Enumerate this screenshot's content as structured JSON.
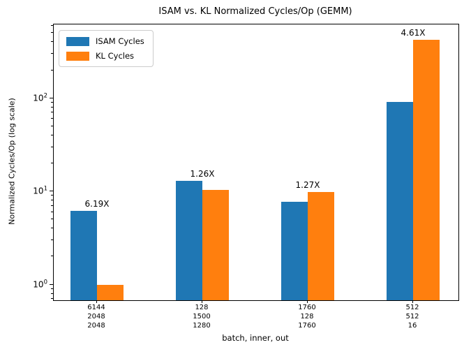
{
  "chart_data": {
    "type": "bar",
    "title": "ISAM vs. KL Normalized Cycles/Op (GEMM)",
    "xlabel": "batch, inner, out",
    "ylabel": "Normalized Cycles/Op (log scale)",
    "yscale": "log",
    "ylim": [
      0.68,
      620
    ],
    "grid": false,
    "legend_position": "upper-left",
    "categories": [
      [
        "6144",
        "2048",
        "2048"
      ],
      [
        "128",
        "1500",
        "1280"
      ],
      [
        "1760",
        "128",
        "1760"
      ],
      [
        "512",
        "512",
        "16"
      ]
    ],
    "series": [
      {
        "name": "ISAM Cycles",
        "color": "#1f77b4",
        "values": [
          6.19,
          13.0,
          7.8,
          92
        ]
      },
      {
        "name": "KL Cycles",
        "color": "#ff7f0e",
        "values": [
          1.0,
          10.3,
          9.9,
          424
        ]
      }
    ],
    "annotations": [
      "6.19X",
      "1.26X",
      "1.27X",
      "4.61X"
    ],
    "yticks": [
      {
        "base": "10",
        "exp": "0",
        "value": 1
      },
      {
        "base": "10",
        "exp": "1",
        "value": 10
      },
      {
        "base": "10",
        "exp": "2",
        "value": 100
      }
    ]
  }
}
